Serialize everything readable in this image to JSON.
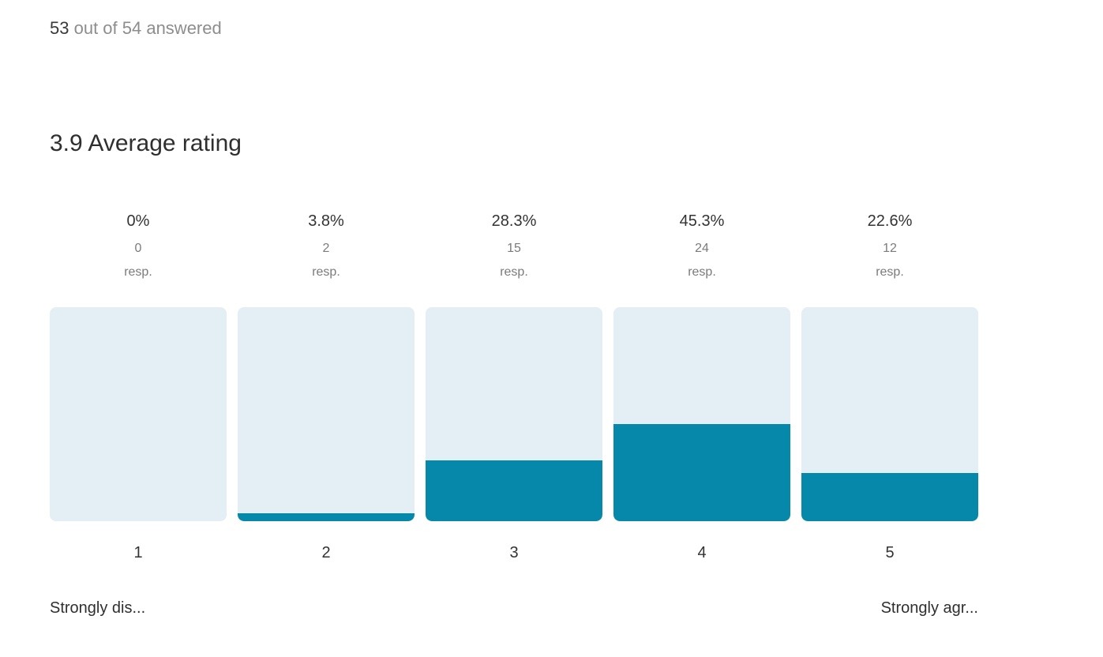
{
  "header": {
    "answered_count": "53",
    "answered_rest": " out of 54 answered"
  },
  "title": "3.9 Average rating",
  "chart_data": {
    "type": "bar",
    "title": "3.9 Average rating",
    "average_rating": 3.9,
    "answered": 53,
    "total": 54,
    "categories": [
      "1",
      "2",
      "3",
      "4",
      "5"
    ],
    "series": [
      {
        "name": "responses",
        "values": [
          0,
          2,
          15,
          24,
          12
        ]
      }
    ],
    "values": [
      0,
      2,
      15,
      24,
      12
    ],
    "percentages": [
      0,
      3.8,
      28.3,
      45.3,
      22.6
    ],
    "percent_labels": [
      "0%",
      "3.8%",
      "28.3%",
      "45.3%",
      "22.6%"
    ],
    "resp_suffix": "resp.",
    "left_endpoint_label": "Strongly dis...",
    "right_endpoint_label": "Strongly agr...",
    "ylim": [
      0,
      100
    ],
    "grid": false,
    "legend": false,
    "colors": {
      "bar_background": "#e3eff5",
      "bar_fill": "#0688ab",
      "text_dark": "#333333",
      "text_gray": "#8d8d8d"
    }
  }
}
